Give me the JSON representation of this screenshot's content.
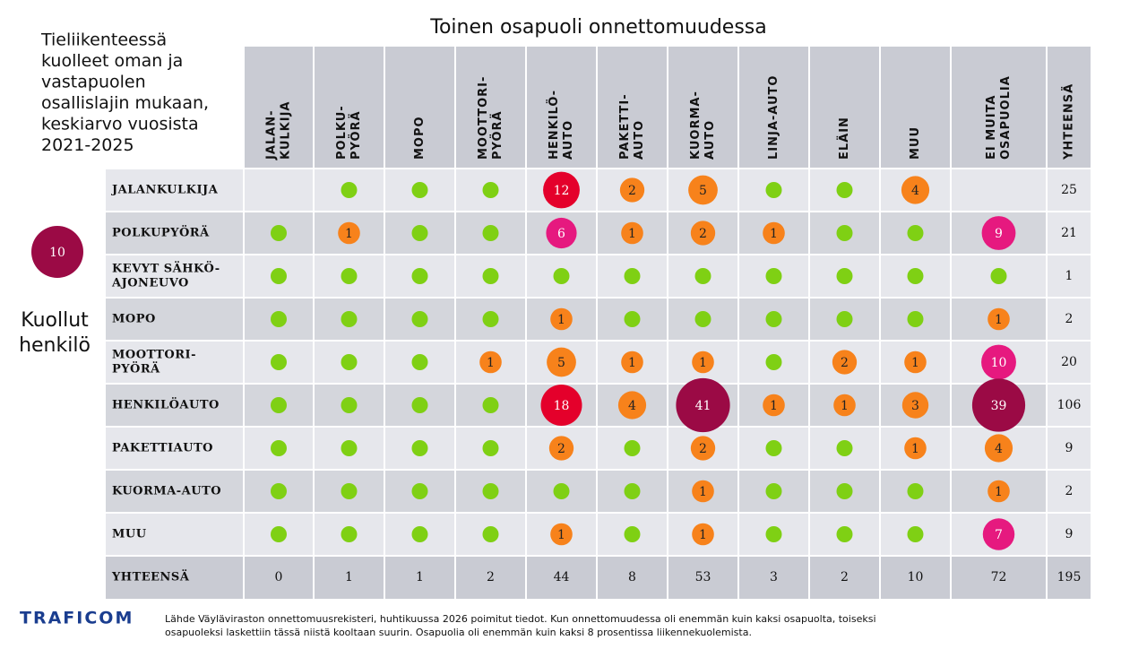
{
  "heading": "Toinen osapuoli onnettomuudessa",
  "title": [
    "Tieliikenteessä",
    "kuolleet oman ja",
    "vastapuolen",
    "osallislajin mukaan,",
    "keskiarvo vuosista",
    "2021-2025"
  ],
  "legend": {
    "value": 10,
    "label": [
      "Kuollut",
      "henkilö"
    ]
  },
  "columns": [
    [
      "JALAN-",
      "KULKIJA"
    ],
    [
      "POLKU-",
      "PYÖRÄ"
    ],
    [
      "MOPO"
    ],
    [
      "MOOTTORI-",
      "PYÖRÄ"
    ],
    [
      "HENKILÖ-",
      "AUTO"
    ],
    [
      "PAKETTI-",
      "AUTO"
    ],
    [
      "KUORMA-",
      "AUTO"
    ],
    [
      "LINJA-AUTO"
    ],
    [
      "ELÄIN"
    ],
    [
      "MUU"
    ],
    [
      "EI MUITA",
      "OSAPUOLIA"
    ],
    [
      "YHTEENSÄ"
    ]
  ],
  "rows": [
    {
      "label": [
        "JALANKULKIJA"
      ],
      "cells": [
        null,
        0,
        0,
        0,
        12,
        2,
        5,
        0,
        0,
        4,
        null
      ],
      "total": 25
    },
    {
      "label": [
        "POLKUPYÖRÄ"
      ],
      "cells": [
        0,
        1,
        0,
        0,
        6,
        1,
        2,
        1,
        0,
        0,
        9
      ],
      "total": 21
    },
    {
      "label": [
        "KEVYT SÄHKÖ-",
        "AJONEUVO"
      ],
      "cells": [
        0,
        0,
        0,
        0,
        0,
        0,
        0,
        0,
        0,
        0,
        0
      ],
      "total": 1
    },
    {
      "label": [
        "MOPO"
      ],
      "cells": [
        0,
        0,
        0,
        0,
        1,
        0,
        0,
        0,
        0,
        0,
        1
      ],
      "total": 2
    },
    {
      "label": [
        "MOOTTORI-",
        "PYÖRÄ"
      ],
      "cells": [
        0,
        0,
        0,
        1,
        5,
        1,
        1,
        0,
        2,
        1,
        10
      ],
      "total": 20
    },
    {
      "label": [
        "HENKILÖAUTO"
      ],
      "cells": [
        0,
        0,
        0,
        0,
        18,
        4,
        41,
        1,
        1,
        3,
        39
      ],
      "total": 106
    },
    {
      "label": [
        "PAKETTIAUTO"
      ],
      "cells": [
        0,
        0,
        0,
        0,
        2,
        0,
        2,
        0,
        0,
        1,
        4
      ],
      "total": 9
    },
    {
      "label": [
        "KUORMA-AUTO"
      ],
      "cells": [
        0,
        0,
        0,
        0,
        0,
        0,
        1,
        0,
        0,
        0,
        1
      ],
      "total": 2
    },
    {
      "label": [
        "MUU"
      ],
      "cells": [
        0,
        0,
        0,
        0,
        1,
        0,
        1,
        0,
        0,
        0,
        7
      ],
      "total": 9
    }
  ],
  "totals": {
    "label": [
      "YHTEENSÄ"
    ],
    "cells": [
      0,
      1,
      1,
      2,
      44,
      8,
      53,
      3,
      2,
      10,
      72
    ],
    "total": 195
  },
  "logo": "TRAFICOM",
  "source": [
    "Lähde Väyläviraston onnettomuusrekisteri, huhtikuussa 2026 poimitut tiedot. Kun onnettomuudessa oli enemmän kuin kaksi osapuolta, toiseksi",
    "osapuoleksi laskettiin tässä niistä kooltaan suurin. Osapuolia oli enemmän kuin kaksi 8 prosentissa liikennekuolemista."
  ]
}
